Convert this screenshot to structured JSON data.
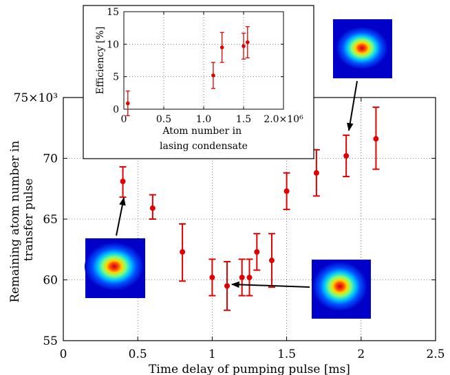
{
  "chart_data": [
    {
      "type": "scatter",
      "xlabel": "Time delay of pumping pulse [ms]",
      "ylabel_lines": [
        "Remaining atom number in",
        "transfer pulse"
      ],
      "xlim": [
        0,
        2.5
      ],
      "ylim": [
        55,
        75
      ],
      "xticks": [
        0,
        0.5,
        1,
        1.5,
        2,
        2.5
      ],
      "xtick_labels": [
        "0",
        "0.5",
        "1",
        "1.5",
        "2",
        "2.5"
      ],
      "yticks": [
        55,
        60,
        65,
        70,
        75
      ],
      "ytick_labels": [
        "55",
        "60",
        "65",
        "70",
        "75×10³"
      ],
      "grid": true,
      "marker_color": "#e00000",
      "points": [
        {
          "x": 0.4,
          "y": 68.1,
          "err_low": 1.3,
          "err_high": 1.2
        },
        {
          "x": 0.6,
          "y": 65.9,
          "err_low": 0.9,
          "err_high": 1.1
        },
        {
          "x": 0.8,
          "y": 62.3,
          "err_low": 2.4,
          "err_high": 2.3
        },
        {
          "x": 1.0,
          "y": 60.2,
          "err_low": 1.5,
          "err_high": 1.5
        },
        {
          "x": 1.1,
          "y": 59.5,
          "err_low": 2.0,
          "err_high": 2.0
        },
        {
          "x": 1.2,
          "y": 60.2,
          "err_low": 1.5,
          "err_high": 1.5
        },
        {
          "x": 1.25,
          "y": 60.2,
          "err_low": 1.5,
          "err_high": 1.5
        },
        {
          "x": 1.3,
          "y": 62.3,
          "err_low": 1.5,
          "err_high": 1.5
        },
        {
          "x": 1.4,
          "y": 61.6,
          "err_low": 2.2,
          "err_high": 2.2
        },
        {
          "x": 1.5,
          "y": 67.3,
          "err_low": 1.5,
          "err_high": 1.5
        },
        {
          "x": 1.7,
          "y": 68.8,
          "err_low": 1.9,
          "err_high": 1.9
        },
        {
          "x": 1.9,
          "y": 70.2,
          "err_low": 1.7,
          "err_high": 1.7
        },
        {
          "x": 2.1,
          "y": 71.6,
          "err_low": 2.5,
          "err_high": 2.6
        }
      ],
      "images": [
        {
          "name": "condensate-image-1",
          "points_to": {
            "x": 0.4,
            "y": 67.0
          }
        },
        {
          "name": "condensate-image-2",
          "points_to": {
            "x": 1.1,
            "y": 59.5
          }
        },
        {
          "name": "condensate-image-3",
          "points_to": {
            "x": 1.9,
            "y": 71.9
          }
        }
      ]
    },
    {
      "type": "scatter",
      "xlabel_lines": [
        "Atom number in",
        "lasing condensate"
      ],
      "ylabel": "Efficiency [%]",
      "xlim": [
        0,
        2000000
      ],
      "ylim": [
        0,
        15
      ],
      "xticks": [
        0,
        500000,
        1000000,
        1500000,
        2000000
      ],
      "xtick_labels": [
        "0",
        "0.5",
        "1.0",
        "1.5",
        "2.0×10⁶"
      ],
      "yticks": [
        0,
        5,
        10,
        15
      ],
      "ytick_labels": [
        "0",
        "5",
        "10",
        "15"
      ],
      "grid": true,
      "marker_color": "#e00000",
      "points": [
        {
          "x": 50000,
          "y": 0.9,
          "err_low": 1.9,
          "err_high": 1.9
        },
        {
          "x": 1120000,
          "y": 5.2,
          "err_low": 2.0,
          "err_high": 2.0
        },
        {
          "x": 1230000,
          "y": 9.5,
          "err_low": 2.3,
          "err_high": 2.3
        },
        {
          "x": 1500000,
          "y": 9.7,
          "err_low": 2.0,
          "err_high": 2.0
        },
        {
          "x": 1550000,
          "y": 10.3,
          "err_low": 2.4,
          "err_high": 2.4
        }
      ]
    }
  ]
}
